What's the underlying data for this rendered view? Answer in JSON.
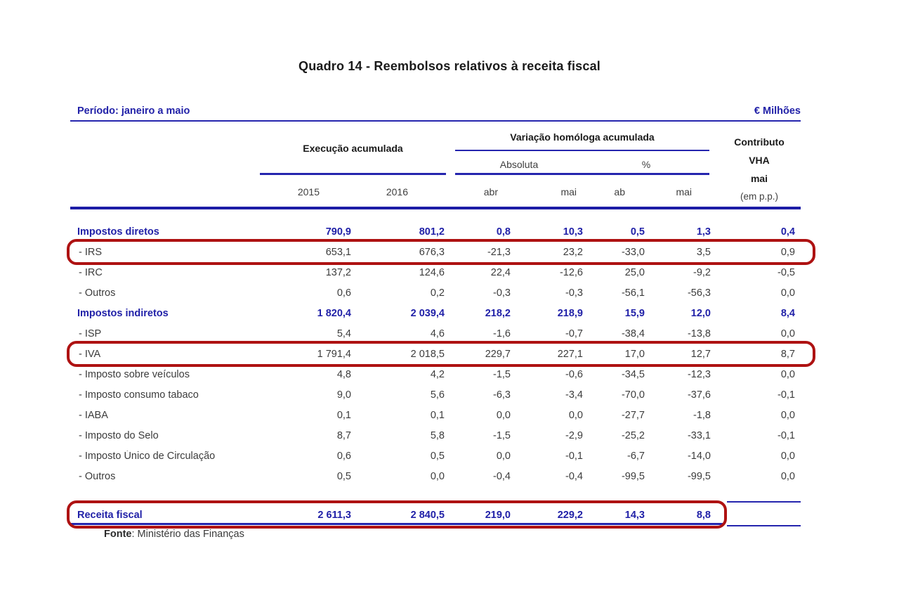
{
  "title": "Quadro 14 - Reembolsos relativos à receita fiscal",
  "period_label": "Período: janeiro a maio",
  "units_label": "€ Milhões",
  "colors": {
    "accent_blue": "#2121A8",
    "line_blue": "#2525AE",
    "highlight_red": "#AE1212",
    "text_dark": "#3C3C3C"
  },
  "header": {
    "execucao": "Execução acumulada",
    "variacao": "Variação homóloga acumulada",
    "absoluta": "Absoluta",
    "percent": "%",
    "contributo_lines": [
      "Contributo",
      "VHA",
      "mai",
      "(em p.p.)"
    ],
    "subcols": [
      "2015",
      "2016",
      "abr",
      "mai",
      "ab",
      "mai"
    ]
  },
  "rows": [
    {
      "label": "Impostos diretos",
      "type": "category",
      "highlighted": false,
      "values": [
        "790,9",
        "801,2",
        "0,8",
        "10,3",
        "0,5",
        "1,3",
        "0,4"
      ]
    },
    {
      "label": "- IRS",
      "type": "item",
      "highlighted": true,
      "values": [
        "653,1",
        "676,3",
        "-21,3",
        "23,2",
        "-33,0",
        "3,5",
        "0,9"
      ]
    },
    {
      "label": "- IRC",
      "type": "item",
      "highlighted": false,
      "values": [
        "137,2",
        "124,6",
        "22,4",
        "-12,6",
        "25,0",
        "-9,2",
        "-0,5"
      ]
    },
    {
      "label": "- Outros",
      "type": "item",
      "highlighted": false,
      "values": [
        "0,6",
        "0,2",
        "-0,3",
        "-0,3",
        "-56,1",
        "-56,3",
        "0,0"
      ]
    },
    {
      "label": "Impostos indiretos",
      "type": "category",
      "highlighted": false,
      "values": [
        "1 820,4",
        "2 039,4",
        "218,2",
        "218,9",
        "15,9",
        "12,0",
        "8,4"
      ]
    },
    {
      "label": "- ISP",
      "type": "item",
      "highlighted": false,
      "values": [
        "5,4",
        "4,6",
        "-1,6",
        "-0,7",
        "-38,4",
        "-13,8",
        "0,0"
      ]
    },
    {
      "label": "- IVA",
      "type": "item",
      "highlighted": true,
      "values": [
        "1 791,4",
        "2 018,5",
        "229,7",
        "227,1",
        "17,0",
        "12,7",
        "8,7"
      ]
    },
    {
      "label": "- Imposto sobre veículos",
      "type": "item",
      "highlighted": false,
      "values": [
        "4,8",
        "4,2",
        "-1,5",
        "-0,6",
        "-34,5",
        "-12,3",
        "0,0"
      ]
    },
    {
      "label": "- Imposto consumo tabaco",
      "type": "item",
      "highlighted": false,
      "values": [
        "9,0",
        "5,6",
        "-6,3",
        "-3,4",
        "-70,0",
        "-37,6",
        "-0,1"
      ]
    },
    {
      "label": "- IABA",
      "type": "item",
      "highlighted": false,
      "values": [
        "0,1",
        "0,1",
        "0,0",
        "0,0",
        "-27,7",
        "-1,8",
        "0,0"
      ]
    },
    {
      "label": "- Imposto do Selo",
      "type": "item",
      "highlighted": false,
      "values": [
        "8,7",
        "5,8",
        "-1,5",
        "-2,9",
        "-25,2",
        "-33,1",
        "-0,1"
      ]
    },
    {
      "label": "- Imposto Único de Circulação",
      "type": "item",
      "highlighted": false,
      "values": [
        "0,6",
        "0,5",
        "0,0",
        "-0,1",
        "-6,7",
        "-14,0",
        "0,0"
      ]
    },
    {
      "label": "- Outros",
      "type": "item",
      "highlighted": false,
      "values": [
        "0,5",
        "0,0",
        "-0,4",
        "-0,4",
        "-99,5",
        "-99,5",
        "0,0"
      ]
    }
  ],
  "total_row": {
    "label": "Receita fiscal",
    "type": "category",
    "highlighted": true,
    "values": [
      "2 611,3",
      "2 840,5",
      "219,0",
      "229,2",
      "14,3",
      "8,8",
      ""
    ]
  },
  "source": {
    "bold": "Fonte",
    "rest": ": Ministério das Finanças"
  }
}
